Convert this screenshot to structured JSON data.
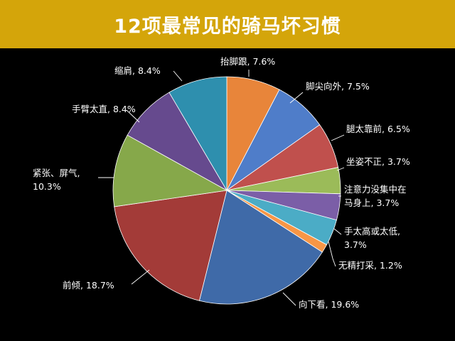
{
  "chart_data": {
    "type": "pie",
    "title": "12项最常见的骑马坏习惯",
    "slices": [
      {
        "label_lines": [
          "抬脚跟, 7.6%"
        ],
        "value": 7.6,
        "color": "#e8853a"
      },
      {
        "label_lines": [
          "脚尖向外, 7.5%"
        ],
        "value": 7.5,
        "color": "#4f7dc9"
      },
      {
        "label_lines": [
          "腿太靠前, 6.5%"
        ],
        "value": 6.5,
        "color": "#c0504d"
      },
      {
        "label_lines": [
          "坐姿不正, 3.7%"
        ],
        "value": 3.7,
        "color": "#9bbb59"
      },
      {
        "label_lines": [
          "注意力没集中在",
          "马身上, 3.7%"
        ],
        "value": 3.7,
        "color": "#7b5ea7"
      },
      {
        "label_lines": [
          "手太高或太低,",
          "3.7%"
        ],
        "value": 3.7,
        "color": "#4bacc6"
      },
      {
        "label_lines": [
          "无精打采, 1.2%"
        ],
        "value": 1.2,
        "color": "#f79646"
      },
      {
        "label_lines": [
          "向下看, 19.6%"
        ],
        "value": 19.6,
        "color": "#3f6aa8"
      },
      {
        "label_lines": [
          "前倾, 18.7%"
        ],
        "value": 18.7,
        "color": "#a33b38"
      },
      {
        "label_lines": [
          "紧张、屏气,",
          "10.3%"
        ],
        "value": 10.3,
        "color": "#86a84a"
      },
      {
        "label_lines": [
          "手臂太直, 8.4%"
        ],
        "value": 8.4,
        "color": "#664a8e"
      },
      {
        "label_lines": [
          "缩肩, 8.4%"
        ],
        "value": 8.4,
        "color": "#2e8fae"
      }
    ]
  }
}
